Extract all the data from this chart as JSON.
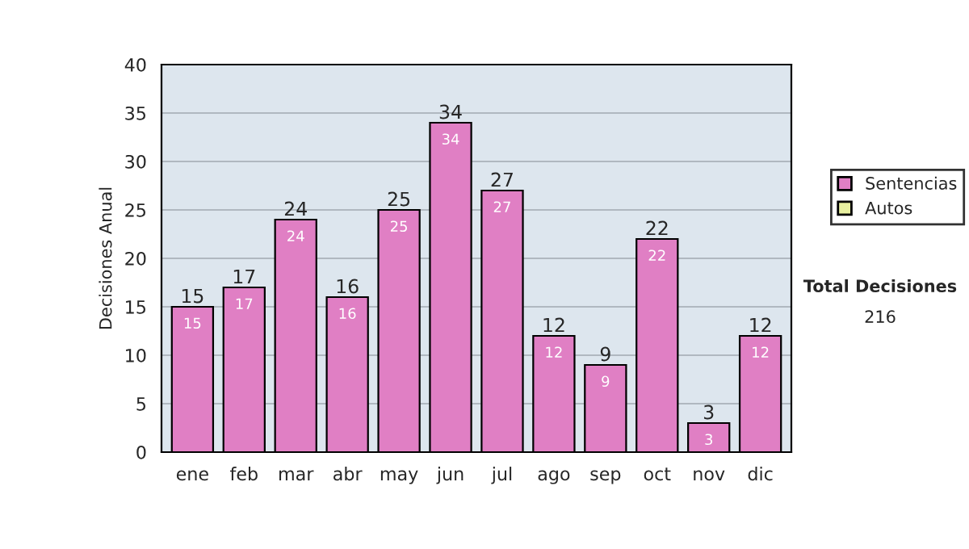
{
  "chart_data": {
    "type": "bar",
    "stacked": true,
    "ylabel": "Decisiones Anual",
    "categories": [
      "ene",
      "feb",
      "mar",
      "abr",
      "may",
      "jun",
      "jul",
      "ago",
      "sep",
      "oct",
      "nov",
      "dic"
    ],
    "series": [
      {
        "name": "Sentencias",
        "color": "#e07fc4",
        "values": [
          15,
          17,
          24,
          16,
          25,
          34,
          27,
          12,
          9,
          22,
          3,
          12
        ],
        "value_labels": [
          "15",
          "17",
          "24",
          "16",
          "25",
          "34",
          "27",
          "12",
          "9",
          "22",
          "3",
          "12"
        ]
      },
      {
        "name": "Autos",
        "color": "#e8f0a0",
        "values": [
          0,
          0,
          0,
          0,
          0,
          0,
          0,
          0,
          0,
          0,
          0,
          0
        ]
      }
    ],
    "totals": [
      "15",
      "17",
      "24",
      "16",
      "25",
      "34",
      "27",
      "12",
      "9",
      "22",
      "3",
      "12"
    ],
    "ylim": [
      0,
      40
    ],
    "yticks": [
      0,
      5,
      10,
      15,
      20,
      25,
      30,
      35,
      40
    ],
    "grid": "y",
    "legend": "right",
    "annotations": [
      "Total Decisiones",
      "216"
    ]
  }
}
